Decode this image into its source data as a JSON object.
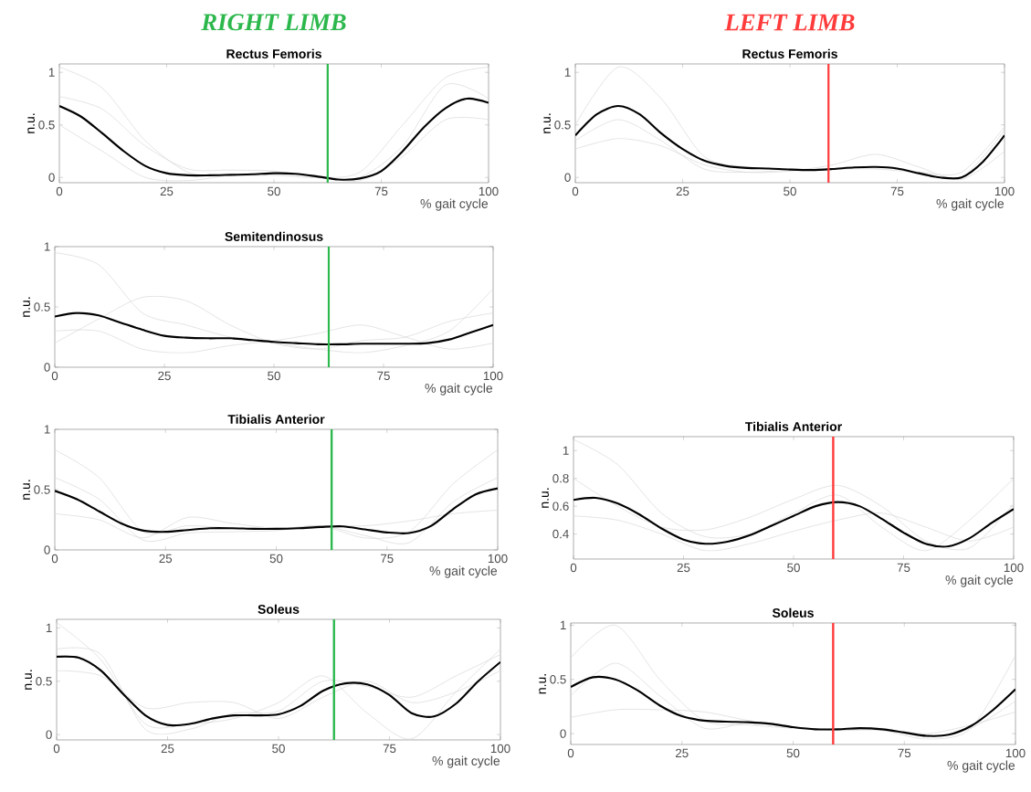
{
  "chart_data": [
    {
      "type": "line",
      "title": "Rectus Femoris",
      "xlabel": "% gait cycle",
      "ylabel": "n.u.",
      "annotations": [
        "RIGHT LIMB"
      ],
      "xlim": [
        0,
        100
      ],
      "xticks": [
        0,
        25,
        50,
        75,
        100
      ],
      "ylim": [
        -0.05,
        1.08
      ],
      "yticks": [
        0,
        0.5,
        1
      ],
      "ref_lines": [
        {
          "axis": "x",
          "value": 62.5,
          "color": "#2db84d"
        }
      ],
      "series": [
        {
          "color": "#d6d6d6",
          "x": [
            0,
            10,
            20,
            30,
            40,
            50,
            60,
            70,
            80,
            90,
            100
          ],
          "values": [
            1.05,
            0.85,
            0.35,
            0.05,
            0.02,
            0.02,
            0.0,
            0.05,
            0.5,
            0.95,
            1.05
          ]
        },
        {
          "color": "#d6d6d6",
          "x": [
            0,
            10,
            20,
            30,
            40,
            50,
            60,
            70,
            80,
            90,
            100
          ],
          "values": [
            0.5,
            0.25,
            0.0,
            -0.03,
            0.02,
            0.03,
            0.01,
            -0.03,
            0.2,
            0.55,
            0.55
          ]
        },
        {
          "color": "#d6d6d6",
          "x": [
            0,
            10,
            20,
            30,
            40,
            50,
            60,
            70,
            80,
            90,
            100
          ],
          "values": [
            0.77,
            0.65,
            0.3,
            0.08,
            0.07,
            0.06,
            0.0,
            0.0,
            0.3,
            0.88,
            0.75
          ]
        },
        {
          "color": "#000000",
          "x": [
            0,
            5,
            10,
            15,
            20,
            25,
            30,
            35,
            40,
            45,
            50,
            55,
            60,
            65,
            70,
            75,
            80,
            85,
            90,
            95,
            100
          ],
          "values": [
            0.68,
            0.58,
            0.42,
            0.25,
            0.11,
            0.04,
            0.02,
            0.02,
            0.025,
            0.03,
            0.04,
            0.035,
            0.01,
            -0.02,
            -0.01,
            0.06,
            0.25,
            0.48,
            0.66,
            0.75,
            0.71
          ]
        }
      ]
    },
    {
      "type": "line",
      "title": "Rectus Femoris",
      "xlabel": "% gait cycle",
      "ylabel": "n.u.",
      "annotations": [
        "LEFT LIMB"
      ],
      "xlim": [
        0,
        100
      ],
      "xticks": [
        0,
        25,
        50,
        75,
        100
      ],
      "ylim": [
        -0.05,
        1.08
      ],
      "yticks": [
        0,
        0.5,
        1
      ],
      "ref_lines": [
        {
          "axis": "x",
          "value": 59,
          "color": "#ff3b3b"
        }
      ],
      "series": [
        {
          "color": "#d6d6d6",
          "x": [
            0,
            10,
            20,
            30,
            40,
            50,
            60,
            70,
            80,
            90,
            100
          ],
          "values": [
            0.5,
            1.05,
            0.75,
            0.2,
            0.1,
            0.08,
            0.08,
            0.1,
            0.05,
            0.0,
            0.45
          ]
        },
        {
          "color": "#d6d6d6",
          "x": [
            0,
            10,
            20,
            30,
            40,
            50,
            60,
            70,
            80,
            90,
            100
          ],
          "values": [
            0.27,
            0.37,
            0.3,
            0.12,
            0.05,
            0.06,
            0.12,
            0.22,
            0.1,
            -0.02,
            0.25
          ]
        },
        {
          "color": "#d6d6d6",
          "x": [
            0,
            10,
            20,
            30,
            40,
            50,
            60,
            70,
            80,
            90,
            100
          ],
          "values": [
            0.35,
            0.55,
            0.35,
            0.08,
            0.05,
            0.07,
            0.08,
            0.08,
            0.05,
            0.05,
            0.48
          ]
        },
        {
          "color": "#000000",
          "x": [
            0,
            5,
            10,
            15,
            20,
            25,
            30,
            35,
            40,
            45,
            50,
            55,
            60,
            65,
            70,
            75,
            80,
            85,
            90,
            95,
            100
          ],
          "values": [
            0.4,
            0.6,
            0.68,
            0.6,
            0.42,
            0.27,
            0.16,
            0.11,
            0.09,
            0.085,
            0.075,
            0.07,
            0.08,
            0.095,
            0.1,
            0.085,
            0.04,
            0.0,
            0.0,
            0.15,
            0.4
          ]
        }
      ]
    },
    {
      "type": "line",
      "title": "Semitendinosus",
      "xlabel": "% gait cycle",
      "ylabel": "n.u.",
      "xlim": [
        0,
        100
      ],
      "xticks": [
        0,
        25,
        50,
        75,
        100
      ],
      "ylim": [
        0,
        1
      ],
      "yticks": [
        0,
        0.5,
        1
      ],
      "ref_lines": [
        {
          "axis": "x",
          "value": 62.5,
          "color": "#2db84d"
        }
      ],
      "series": [
        {
          "color": "#d6d6d6",
          "x": [
            0,
            10,
            20,
            30,
            40,
            50,
            60,
            70,
            80,
            90,
            100
          ],
          "values": [
            0.95,
            0.85,
            0.45,
            0.35,
            0.25,
            0.2,
            0.15,
            0.12,
            0.18,
            0.3,
            0.65
          ]
        },
        {
          "color": "#d6d6d6",
          "x": [
            0,
            10,
            20,
            30,
            40,
            50,
            60,
            70,
            80,
            90,
            100
          ],
          "values": [
            0.2,
            0.4,
            0.58,
            0.55,
            0.35,
            0.2,
            0.15,
            0.22,
            0.25,
            0.38,
            0.45
          ]
        },
        {
          "color": "#d6d6d6",
          "x": [
            0,
            10,
            20,
            30,
            40,
            50,
            60,
            70,
            80,
            90,
            100
          ],
          "values": [
            0.3,
            0.3,
            0.15,
            0.12,
            0.18,
            0.22,
            0.28,
            0.35,
            0.25,
            0.15,
            0.2
          ]
        },
        {
          "color": "#000000",
          "x": [
            0,
            5,
            10,
            15,
            20,
            25,
            30,
            35,
            40,
            45,
            50,
            55,
            60,
            65,
            70,
            75,
            80,
            85,
            90,
            95,
            100
          ],
          "values": [
            0.42,
            0.45,
            0.43,
            0.37,
            0.31,
            0.26,
            0.245,
            0.24,
            0.24,
            0.225,
            0.21,
            0.2,
            0.19,
            0.19,
            0.195,
            0.195,
            0.195,
            0.2,
            0.23,
            0.29,
            0.35
          ]
        }
      ]
    },
    {
      "type": "line",
      "title": "Tibialis Anterior",
      "xlabel": "% gait cycle",
      "ylabel": "n.u.",
      "xlim": [
        0,
        100
      ],
      "xticks": [
        0,
        25,
        50,
        75,
        100
      ],
      "ylim": [
        0,
        1
      ],
      "yticks": [
        0,
        0.5,
        1
      ],
      "ref_lines": [
        {
          "axis": "x",
          "value": 62.5,
          "color": "#2db84d"
        }
      ],
      "series": [
        {
          "color": "#d6d6d6",
          "x": [
            0,
            10,
            20,
            30,
            40,
            50,
            60,
            70,
            80,
            90,
            100
          ],
          "values": [
            0.83,
            0.6,
            0.15,
            0.2,
            0.18,
            0.17,
            0.2,
            0.1,
            0.15,
            0.55,
            0.83
          ]
        },
        {
          "color": "#d6d6d6",
          "x": [
            0,
            10,
            20,
            30,
            40,
            50,
            60,
            70,
            80,
            90,
            100
          ],
          "values": [
            0.3,
            0.25,
            0.1,
            0.27,
            0.22,
            0.18,
            0.2,
            0.2,
            0.24,
            0.3,
            0.33
          ]
        },
        {
          "color": "#d6d6d6",
          "x": [
            0,
            10,
            20,
            30,
            40,
            50,
            60,
            70,
            80,
            90,
            100
          ],
          "values": [
            0.6,
            0.42,
            0.08,
            0.14,
            0.15,
            0.16,
            0.2,
            0.12,
            0.06,
            0.4,
            0.6
          ]
        },
        {
          "color": "#000000",
          "x": [
            0,
            5,
            10,
            15,
            20,
            25,
            30,
            35,
            40,
            45,
            50,
            55,
            60,
            65,
            70,
            75,
            80,
            85,
            90,
            95,
            100
          ],
          "values": [
            0.49,
            0.42,
            0.32,
            0.22,
            0.16,
            0.15,
            0.165,
            0.18,
            0.18,
            0.175,
            0.175,
            0.18,
            0.19,
            0.195,
            0.17,
            0.145,
            0.14,
            0.2,
            0.34,
            0.46,
            0.51
          ]
        }
      ]
    },
    {
      "type": "line",
      "title": "Tibialis Anterior",
      "xlabel": "% gait cycle",
      "ylabel": "n.u.",
      "xlim": [
        0,
        100
      ],
      "xticks": [
        0,
        25,
        50,
        75,
        100
      ],
      "ylim": [
        0.22,
        1.1
      ],
      "yticks": [
        0.4,
        0.6,
        0.8,
        1
      ],
      "ref_lines": [
        {
          "axis": "x",
          "value": 59,
          "color": "#ff3b3b"
        }
      ],
      "series": [
        {
          "color": "#d6d6d6",
          "x": [
            0,
            10,
            20,
            30,
            40,
            50,
            60,
            70,
            80,
            90,
            100
          ],
          "values": [
            1.08,
            0.9,
            0.55,
            0.38,
            0.4,
            0.55,
            0.68,
            0.45,
            0.28,
            0.5,
            0.8
          ]
        },
        {
          "color": "#d6d6d6",
          "x": [
            0,
            10,
            20,
            30,
            40,
            50,
            60,
            70,
            80,
            90,
            100
          ],
          "values": [
            0.53,
            0.5,
            0.4,
            0.28,
            0.33,
            0.42,
            0.5,
            0.55,
            0.45,
            0.35,
            0.45
          ]
        },
        {
          "color": "#d6d6d6",
          "x": [
            0,
            10,
            20,
            30,
            40,
            50,
            60,
            70,
            80,
            90,
            100
          ],
          "values": [
            0.8,
            0.6,
            0.45,
            0.43,
            0.52,
            0.65,
            0.75,
            0.6,
            0.35,
            0.3,
            0.62
          ]
        },
        {
          "color": "#000000",
          "x": [
            0,
            5,
            10,
            15,
            20,
            25,
            30,
            35,
            40,
            45,
            50,
            55,
            60,
            65,
            70,
            75,
            80,
            85,
            90,
            95,
            100
          ],
          "values": [
            0.645,
            0.66,
            0.62,
            0.54,
            0.44,
            0.36,
            0.33,
            0.345,
            0.39,
            0.46,
            0.53,
            0.6,
            0.63,
            0.6,
            0.51,
            0.41,
            0.33,
            0.31,
            0.37,
            0.48,
            0.58
          ]
        }
      ]
    },
    {
      "type": "line",
      "title": "Soleus",
      "xlabel": "% gait cycle",
      "ylabel": "n.u.",
      "xlim": [
        0,
        100
      ],
      "xticks": [
        0,
        25,
        50,
        75,
        100
      ],
      "ylim": [
        -0.05,
        1.08
      ],
      "yticks": [
        0,
        0.5,
        1
      ],
      "ref_lines": [
        {
          "axis": "x",
          "value": 62.5,
          "color": "#2db84d"
        }
      ],
      "series": [
        {
          "color": "#d6d6d6",
          "x": [
            0,
            10,
            20,
            30,
            40,
            50,
            60,
            70,
            80,
            90,
            100
          ],
          "values": [
            1.05,
            0.7,
            0.1,
            0.1,
            0.15,
            0.3,
            0.55,
            0.2,
            -0.04,
            0.4,
            0.8
          ]
        },
        {
          "color": "#d6d6d6",
          "x": [
            0,
            10,
            20,
            30,
            40,
            50,
            60,
            70,
            80,
            90,
            100
          ],
          "values": [
            0.6,
            0.55,
            0.25,
            0.3,
            0.3,
            0.15,
            0.35,
            0.5,
            0.3,
            0.4,
            0.6
          ]
        },
        {
          "color": "#d6d6d6",
          "x": [
            0,
            10,
            20,
            30,
            40,
            50,
            60,
            70,
            80,
            90,
            100
          ],
          "values": [
            0.8,
            0.75,
            0.05,
            0.05,
            0.2,
            0.22,
            0.5,
            0.45,
            0.35,
            0.55,
            0.75
          ]
        },
        {
          "color": "#000000",
          "x": [
            0,
            5,
            10,
            15,
            20,
            25,
            30,
            35,
            40,
            45,
            50,
            55,
            60,
            65,
            70,
            75,
            80,
            85,
            90,
            95,
            100
          ],
          "values": [
            0.73,
            0.72,
            0.6,
            0.38,
            0.18,
            0.09,
            0.1,
            0.15,
            0.18,
            0.18,
            0.19,
            0.27,
            0.41,
            0.48,
            0.47,
            0.37,
            0.2,
            0.17,
            0.29,
            0.5,
            0.68
          ]
        }
      ]
    },
    {
      "type": "line",
      "title": "Soleus",
      "xlabel": "% gait cycle",
      "ylabel": "n.u.",
      "xlim": [
        0,
        100
      ],
      "xticks": [
        0,
        25,
        50,
        75,
        100
      ],
      "ylim": [
        -0.1,
        1.02
      ],
      "yticks": [
        0,
        0.5,
        1
      ],
      "ref_lines": [
        {
          "axis": "x",
          "value": 59,
          "color": "#ff3b3b"
        }
      ],
      "series": [
        {
          "color": "#d6d6d6",
          "x": [
            0,
            10,
            20,
            30,
            40,
            50,
            60,
            70,
            80,
            90,
            100
          ],
          "values": [
            0.7,
            1.0,
            0.5,
            0.12,
            0.08,
            0.05,
            0.03,
            0.03,
            -0.05,
            0.05,
            0.72
          ]
        },
        {
          "color": "#d6d6d6",
          "x": [
            0,
            10,
            20,
            30,
            40,
            50,
            60,
            70,
            80,
            90,
            100
          ],
          "values": [
            0.15,
            0.22,
            0.22,
            0.2,
            0.12,
            0.06,
            0.04,
            0.04,
            0.0,
            0.08,
            0.2
          ]
        },
        {
          "color": "#d6d6d6",
          "x": [
            0,
            10,
            20,
            30,
            40,
            50,
            60,
            70,
            80,
            90,
            100
          ],
          "values": [
            0.35,
            0.65,
            0.35,
            0.05,
            0.1,
            0.06,
            0.03,
            0.05,
            -0.03,
            0.05,
            0.3
          ]
        },
        {
          "color": "#000000",
          "x": [
            0,
            5,
            10,
            15,
            20,
            25,
            30,
            35,
            40,
            45,
            50,
            55,
            60,
            65,
            70,
            75,
            80,
            85,
            90,
            95,
            100
          ],
          "values": [
            0.43,
            0.52,
            0.5,
            0.4,
            0.26,
            0.16,
            0.12,
            0.11,
            0.105,
            0.09,
            0.06,
            0.04,
            0.04,
            0.05,
            0.04,
            0.01,
            -0.02,
            -0.01,
            0.07,
            0.22,
            0.41
          ]
        }
      ]
    }
  ]
}
